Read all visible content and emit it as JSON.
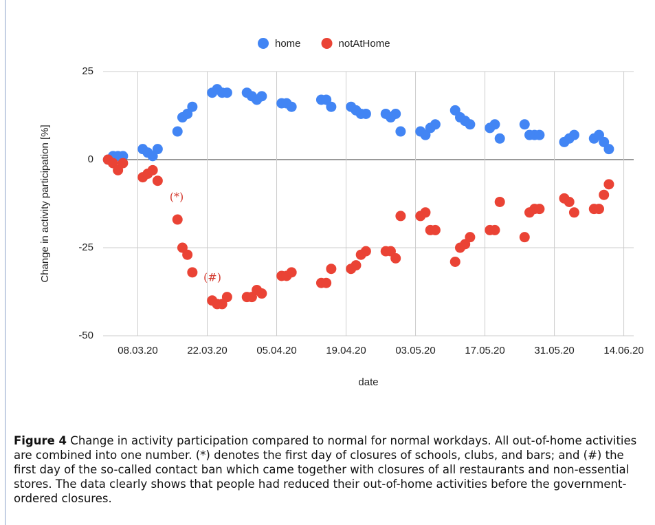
{
  "chart_data": {
    "type": "scatter",
    "x_label": "date",
    "y_label": "Change in activity participation [%]",
    "x": [
      "02.03.20",
      "03.03.20",
      "04.03.20",
      "05.03.20",
      "09.03.20",
      "10.03.20",
      "11.03.20",
      "12.03.20",
      "16.03.20",
      "17.03.20",
      "18.03.20",
      "19.03.20",
      "23.03.20",
      "24.03.20",
      "25.03.20",
      "26.03.20",
      "30.03.20",
      "31.03.20",
      "01.04.20",
      "02.04.20",
      "06.04.20",
      "07.04.20",
      "08.04.20",
      "14.04.20",
      "15.04.20",
      "16.04.20",
      "20.04.20",
      "21.04.20",
      "22.04.20",
      "23.04.20",
      "27.04.20",
      "28.04.20",
      "29.04.20",
      "30.04.20",
      "04.05.20",
      "05.05.20",
      "06.05.20",
      "07.05.20",
      "11.05.20",
      "12.05.20",
      "13.05.20",
      "14.05.20",
      "18.05.20",
      "19.05.20",
      "20.05.20",
      "25.05.20",
      "26.05.20",
      "27.05.20",
      "28.05.20",
      "02.06.20",
      "03.06.20",
      "04.06.20",
      "08.06.20",
      "09.06.20",
      "10.06.20",
      "11.06.20"
    ],
    "series": [
      {
        "name": "home",
        "color": "#4285f4",
        "values": [
          0,
          1,
          1,
          1,
          3,
          2,
          1,
          3,
          8,
          12,
          13,
          15,
          19,
          20,
          19,
          19,
          19,
          18,
          17,
          18,
          16,
          16,
          15,
          17,
          17,
          15,
          15,
          14,
          13,
          13,
          13,
          12,
          13,
          8,
          8,
          7,
          9,
          10,
          14,
          12,
          11,
          10,
          9,
          10,
          6,
          10,
          7,
          7,
          7,
          5,
          6,
          7,
          6,
          7,
          5,
          3
        ]
      },
      {
        "name": "notAtHome",
        "color": "#ea4335",
        "values": [
          0,
          -1,
          -3,
          -1,
          -5,
          -4,
          -3,
          -6,
          -17,
          -25,
          -27,
          -32,
          -40,
          -41,
          -41,
          -39,
          -39,
          -39,
          -37,
          -38,
          -33,
          -33,
          -32,
          -35,
          -35,
          -31,
          -31,
          -30,
          -27,
          -26,
          -26,
          -26,
          -28,
          -16,
          -16,
          -15,
          -20,
          -20,
          -29,
          -25,
          -24,
          -22,
          -20,
          -20,
          -12,
          -22,
          -15,
          -14,
          -14,
          -11,
          -12,
          -15,
          -14,
          -14,
          -10,
          -7
        ]
      }
    ],
    "xlim": [
      "01.03.20",
      "16.06.20"
    ],
    "xticks": [
      "08.03.20",
      "22.03.20",
      "05.04.20",
      "19.04.20",
      "03.05.20",
      "17.05.20",
      "31.05.20",
      "14.06.20"
    ],
    "ylim": [
      -50,
      25
    ],
    "yticks": [
      -50,
      -25,
      0,
      25
    ],
    "grid": true,
    "legend": "top",
    "annotations": [
      "(*)",
      "(#)"
    ],
    "annotation_color": "#d33a2f"
  },
  "caption": {
    "label": "Figure 4",
    "text": "Change in activity participation compared to normal for normal workdays. All out-of-home activities are combined into one number. (*) denotes the first day of closures of schools, clubs, and bars; and (#) the first day of the so-called contact ban which came together with closures of all restaurants and non-essential stores. The data clearly shows that people had reduced their out-of-home activities before the government-ordered closures."
  }
}
